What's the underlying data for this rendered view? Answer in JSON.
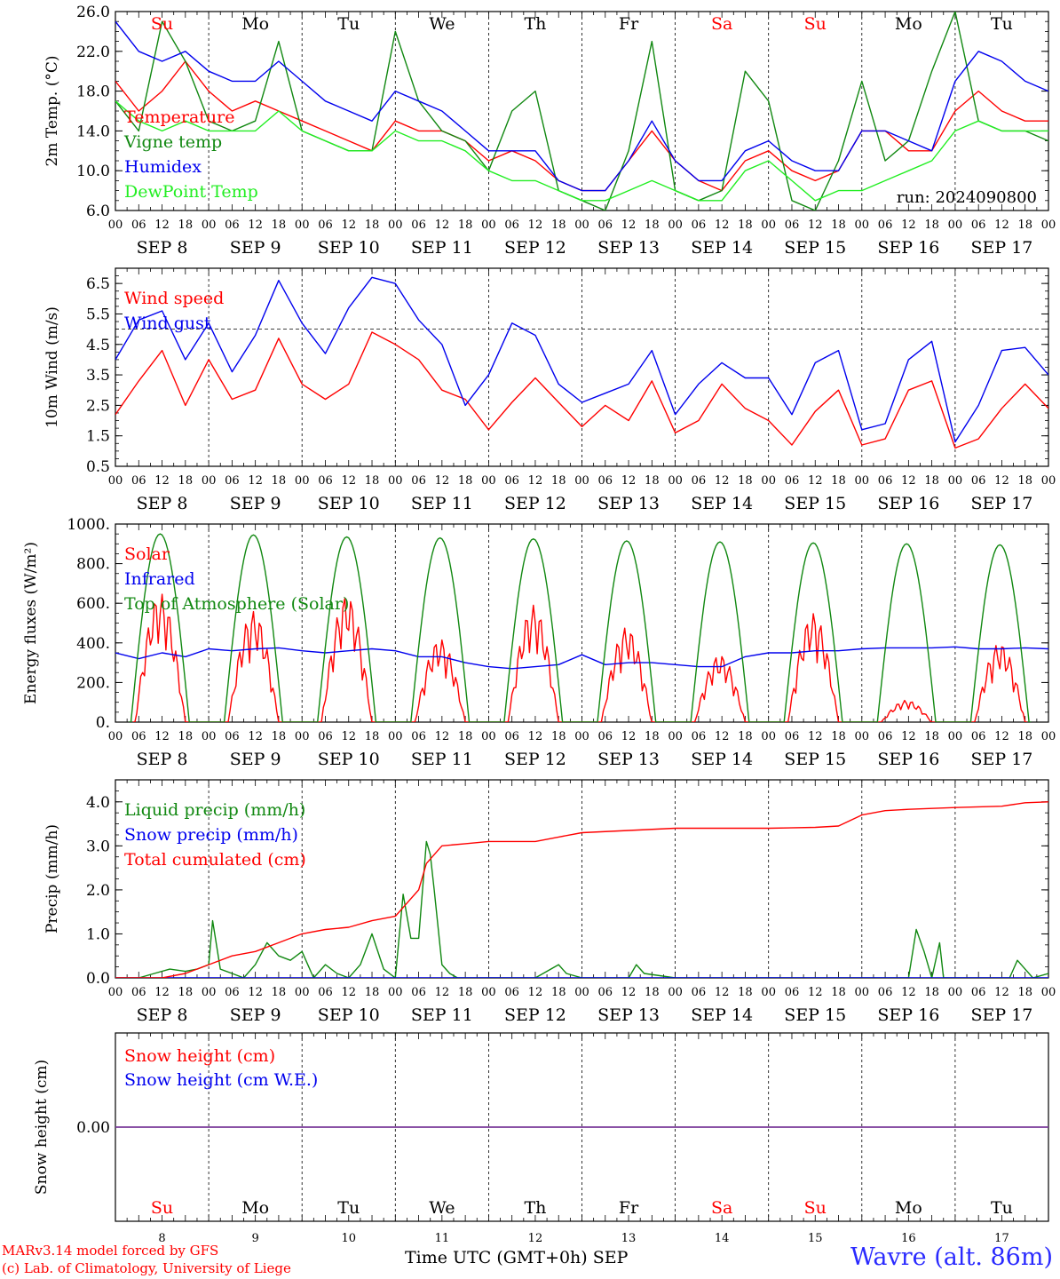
{
  "colors": {
    "red": "#ff0000",
    "green": "#118811",
    "blue": "#0000ee",
    "lightgreen": "#22ee22",
    "purple": "#7a3a9a",
    "axis": "#000000"
  },
  "hours": [
    "00",
    "06",
    "12",
    "18"
  ],
  "days": {
    "dates": [
      "SEP  8",
      "SEP  9",
      "SEP 10",
      "SEP 11",
      "SEP 12",
      "SEP 13",
      "SEP 14",
      "SEP 15",
      "SEP 16",
      "SEP 17"
    ],
    "weekdays": [
      "Su",
      "Mo",
      "Tu",
      "We",
      "Th",
      "Fr",
      "Sa",
      "Su",
      "Mo",
      "Tu"
    ],
    "weekday_colors": [
      "red",
      "black",
      "black",
      "black",
      "black",
      "black",
      "red",
      "red",
      "black",
      "black"
    ],
    "day_numbers": [
      "8",
      "9",
      "10",
      "11",
      "12",
      "13",
      "14",
      "15",
      "16",
      "17"
    ]
  },
  "footer": {
    "credit1": "MARv3.14 model forced by GFS",
    "credit2": "(c) Lab. of Climatology, University of Liege",
    "xlabel": "Time UTC (GMT+0h) SEP",
    "station": "Wavre (alt. 86m)"
  },
  "chart_data": [
    {
      "type": "line",
      "id": "temp",
      "ylabel": "2m Temp. (°C)",
      "ylim": [
        6,
        26
      ],
      "yticks": [
        "6.0",
        "10.0",
        "14.0",
        "18.0",
        "22.0",
        "26.0"
      ],
      "note": "run: 2024090800",
      "x_unit": "hours since SEP 8 00 UTC",
      "series": [
        {
          "name": "Temperature",
          "color": "red",
          "x": [
            0,
            6,
            12,
            18,
            24,
            30,
            36,
            42,
            48,
            54,
            60,
            66,
            72,
            78,
            84,
            90,
            96,
            102,
            108,
            114,
            120,
            126,
            132,
            138,
            144,
            150,
            156,
            162,
            168,
            174,
            180,
            186,
            192,
            198,
            204,
            210,
            216,
            222,
            228,
            234,
            240
          ],
          "y": [
            19,
            16,
            18,
            21,
            18,
            16,
            17,
            16,
            15,
            14,
            13,
            12,
            15,
            14,
            14,
            13,
            11,
            12,
            11,
            9,
            8,
            8,
            11,
            14,
            11,
            9,
            8,
            11,
            12,
            10,
            9,
            10,
            14,
            14,
            12,
            12,
            16,
            18,
            16,
            15,
            15
          ]
        },
        {
          "name": "Vigne temp",
          "color": "green",
          "x": [
            0,
            6,
            12,
            18,
            24,
            30,
            36,
            42,
            48,
            54,
            60,
            66,
            72,
            78,
            84,
            90,
            96,
            102,
            108,
            114,
            120,
            126,
            132,
            138,
            144,
            150,
            156,
            162,
            168,
            174,
            180,
            186,
            192,
            198,
            204,
            210,
            216,
            222,
            228,
            234,
            240
          ],
          "y": [
            17,
            14,
            25,
            21,
            15,
            14,
            15,
            23,
            14,
            13,
            12,
            12,
            24,
            17,
            14,
            13,
            10,
            16,
            18,
            8,
            7,
            6,
            12,
            23,
            8,
            7,
            8,
            20,
            17,
            7,
            6,
            11,
            19,
            11,
            13,
            20,
            26,
            15,
            14,
            14,
            13
          ]
        },
        {
          "name": "Humidex",
          "color": "blue",
          "x": [
            0,
            6,
            12,
            18,
            24,
            30,
            36,
            42,
            48,
            54,
            60,
            66,
            72,
            78,
            84,
            90,
            96,
            102,
            108,
            114,
            120,
            126,
            132,
            138,
            144,
            150,
            156,
            162,
            168,
            174,
            180,
            186,
            192,
            198,
            204,
            210,
            216,
            222,
            228,
            234,
            240
          ],
          "y": [
            25,
            22,
            21,
            22,
            20,
            19,
            19,
            21,
            19,
            17,
            16,
            15,
            18,
            17,
            16,
            14,
            12,
            12,
            12,
            9,
            8,
            8,
            11,
            15,
            11,
            9,
            9,
            12,
            13,
            11,
            10,
            10,
            14,
            14,
            13,
            12,
            19,
            22,
            21,
            19,
            18
          ]
        },
        {
          "name": "DewPoint Temp",
          "color": "lightgreen",
          "x": [
            0,
            6,
            12,
            18,
            24,
            30,
            36,
            42,
            48,
            54,
            60,
            66,
            72,
            78,
            84,
            90,
            96,
            102,
            108,
            114,
            120,
            126,
            132,
            138,
            144,
            150,
            156,
            162,
            168,
            174,
            180,
            186,
            192,
            198,
            204,
            210,
            216,
            222,
            228,
            234,
            240
          ],
          "y": [
            17,
            15,
            14,
            15,
            14,
            14,
            14,
            16,
            14,
            13,
            12,
            12,
            14,
            13,
            13,
            12,
            10,
            9,
            9,
            8,
            7,
            7,
            8,
            9,
            8,
            7,
            7,
            10,
            11,
            9,
            7,
            8,
            8,
            9,
            10,
            11,
            14,
            15,
            14,
            14,
            14
          ]
        }
      ]
    },
    {
      "type": "line",
      "id": "wind",
      "ylabel": "10m Wind (m/s)",
      "ylim": [
        0.5,
        7.0
      ],
      "yticks": [
        "0.5",
        "1.5",
        "2.5",
        "3.5",
        "4.5",
        "5.5",
        "6.5"
      ],
      "ref_line": 5.0,
      "series": [
        {
          "name": "Wind speed",
          "color": "red",
          "x": [
            0,
            6,
            12,
            18,
            24,
            30,
            36,
            42,
            48,
            54,
            60,
            66,
            72,
            78,
            84,
            90,
            96,
            102,
            108,
            114,
            120,
            126,
            132,
            138,
            144,
            150,
            156,
            162,
            168,
            174,
            180,
            186,
            192,
            198,
            204,
            210,
            216,
            222,
            228,
            234,
            240
          ],
          "y": [
            2.2,
            3.3,
            4.3,
            2.5,
            4.0,
            2.7,
            3.0,
            4.7,
            3.2,
            2.7,
            3.2,
            4.9,
            4.5,
            4.0,
            3.0,
            2.7,
            1.7,
            2.6,
            3.4,
            2.6,
            1.8,
            2.5,
            2.0,
            3.3,
            1.6,
            2.0,
            3.2,
            2.4,
            2.0,
            1.2,
            2.3,
            3.0,
            1.2,
            1.4,
            3.0,
            3.3,
            1.1,
            1.4,
            2.4,
            3.2,
            2.4
          ]
        },
        {
          "name": "Wind gust",
          "color": "blue",
          "x": [
            0,
            6,
            12,
            18,
            24,
            30,
            36,
            42,
            48,
            54,
            60,
            66,
            72,
            78,
            84,
            90,
            96,
            102,
            108,
            114,
            120,
            126,
            132,
            138,
            144,
            150,
            156,
            162,
            168,
            174,
            180,
            186,
            192,
            198,
            204,
            210,
            216,
            222,
            228,
            234,
            240
          ],
          "y": [
            4.0,
            5.3,
            5.6,
            4.0,
            5.2,
            3.6,
            4.8,
            6.6,
            5.2,
            4.2,
            5.7,
            6.7,
            6.5,
            5.3,
            4.5,
            2.5,
            3.5,
            5.2,
            4.8,
            3.2,
            2.6,
            2.9,
            3.2,
            4.3,
            2.2,
            3.2,
            3.9,
            3.4,
            3.4,
            2.2,
            3.9,
            4.3,
            1.7,
            1.9,
            4.0,
            4.6,
            1.3,
            2.5,
            4.3,
            4.4,
            3.5
          ]
        }
      ]
    },
    {
      "type": "line",
      "id": "energy",
      "ylabel": "Energy fluxes (W/m²)",
      "ylim": [
        0,
        1000
      ],
      "yticks": [
        "0.",
        "200.",
        "400.",
        "600.",
        "800.",
        "1000."
      ],
      "series": [
        {
          "name": "Solar",
          "color": "red",
          "peaks": [
            [
              12,
              650
            ],
            [
              36,
              560
            ],
            [
              60,
              640
            ],
            [
              84,
              420
            ],
            [
              108,
              590
            ],
            [
              132,
              480
            ],
            [
              156,
              340
            ],
            [
              180,
              550
            ],
            [
              204,
              110
            ],
            [
              228,
              400
            ]
          ]
        },
        {
          "name": "Infrared",
          "color": "blue",
          "x": [
            0,
            6,
            12,
            18,
            24,
            30,
            36,
            42,
            48,
            54,
            60,
            66,
            72,
            78,
            84,
            90,
            96,
            102,
            108,
            114,
            120,
            126,
            132,
            138,
            144,
            150,
            156,
            162,
            168,
            174,
            180,
            186,
            192,
            198,
            204,
            210,
            216,
            222,
            228,
            234,
            240
          ],
          "y": [
            350,
            320,
            350,
            330,
            370,
            360,
            370,
            375,
            360,
            350,
            360,
            370,
            360,
            330,
            330,
            300,
            280,
            270,
            280,
            290,
            340,
            290,
            300,
            300,
            290,
            280,
            280,
            330,
            350,
            350,
            360,
            360,
            370,
            375,
            375,
            375,
            380,
            370,
            370,
            375,
            370
          ]
        },
        {
          "name": "Top of Atmosphere (Solar)",
          "color": "green",
          "peaks": [
            [
              12,
              950
            ],
            [
              36,
              945
            ],
            [
              60,
              935
            ],
            [
              84,
              930
            ],
            [
              108,
              925
            ],
            [
              132,
              915
            ],
            [
              156,
              910
            ],
            [
              180,
              905
            ],
            [
              204,
              900
            ],
            [
              228,
              895
            ]
          ]
        }
      ]
    },
    {
      "type": "line",
      "id": "precip",
      "ylabel": "Precip (mm/h)",
      "ylim": [
        0,
        4.5
      ],
      "yticks": [
        "0.0",
        "1.0",
        "2.0",
        "3.0",
        "4.0"
      ],
      "series": [
        {
          "name": "Liquid precip (mm/h)",
          "color": "green",
          "x": [
            0,
            6,
            10,
            14,
            18,
            21,
            24,
            25,
            27,
            30,
            33,
            36,
            39,
            42,
            45,
            48,
            51,
            54,
            57,
            60,
            63,
            66,
            69,
            72,
            74,
            76,
            78,
            80,
            81,
            82,
            84,
            86,
            88,
            90,
            96,
            102,
            108,
            114,
            116,
            120,
            126,
            132,
            134,
            136,
            144,
            168,
            192,
            204,
            206,
            208,
            210,
            212,
            213,
            214,
            216,
            228,
            230,
            232,
            234,
            236,
            240
          ],
          "y": [
            0,
            0,
            0.1,
            0.2,
            0.15,
            0.2,
            0.3,
            1.3,
            0.2,
            0.1,
            0,
            0.3,
            0.8,
            0.5,
            0.4,
            0.6,
            0,
            0.3,
            0.1,
            0,
            0.3,
            1.0,
            0.2,
            0,
            1.9,
            0.9,
            0.9,
            3.1,
            2.8,
            2.0,
            0.3,
            0.1,
            0,
            0,
            0,
            0,
            0,
            0.3,
            0.1,
            0,
            0,
            0,
            0.3,
            0.1,
            0,
            0,
            0,
            0,
            1.1,
            0.6,
            0,
            0.8,
            0,
            0,
            0,
            0,
            0,
            0.4,
            0.2,
            0,
            0.1
          ]
        },
        {
          "name": "Snow precip (mm/h)",
          "color": "blue",
          "x": [
            0,
            240
          ],
          "y": [
            0,
            0
          ]
        },
        {
          "name": "Total cumulated (cm)",
          "color": "red",
          "x": [
            0,
            12,
            18,
            24,
            30,
            36,
            42,
            48,
            54,
            60,
            66,
            72,
            78,
            80,
            84,
            90,
            96,
            102,
            108,
            114,
            120,
            132,
            144,
            156,
            168,
            180,
            186,
            192,
            198,
            204,
            210,
            216,
            228,
            234,
            240
          ],
          "y": [
            0,
            0,
            0.1,
            0.3,
            0.5,
            0.6,
            0.8,
            1.0,
            1.1,
            1.15,
            1.3,
            1.4,
            2.0,
            2.6,
            3.0,
            3.05,
            3.1,
            3.1,
            3.1,
            3.2,
            3.3,
            3.35,
            3.4,
            3.4,
            3.4,
            3.42,
            3.45,
            3.7,
            3.8,
            3.83,
            3.85,
            3.87,
            3.9,
            3.98,
            4.0
          ]
        }
      ]
    },
    {
      "type": "line",
      "id": "snow",
      "ylabel": "Snow height (cm)",
      "ylim": [
        -1,
        1
      ],
      "yticks": [
        "0.00"
      ],
      "series": [
        {
          "name": "Snow height (cm)",
          "color": "red",
          "x": [
            0,
            240
          ],
          "y": [
            0,
            0
          ]
        },
        {
          "name": "Snow height (cm W.E.)",
          "color": "blue",
          "x": [
            0,
            240
          ],
          "y": [
            0,
            0
          ]
        }
      ]
    }
  ]
}
